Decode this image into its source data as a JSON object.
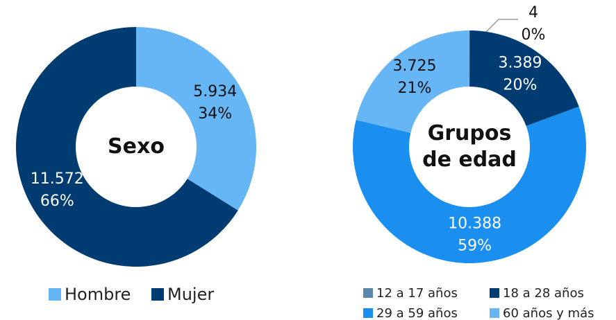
{
  "chart_data": [
    {
      "type": "donut",
      "title": "Sexo",
      "categories": [
        "Hombre",
        "Mujer"
      ],
      "values": [
        5934,
        11572
      ],
      "value_labels": [
        "5.934",
        "11.572"
      ],
      "percents": [
        34,
        66
      ],
      "percent_labels": [
        "34%",
        "66%"
      ],
      "colors": [
        "#66b5f5",
        "#003b71"
      ],
      "legend": "bottom"
    },
    {
      "type": "donut",
      "title": "Grupos de edad",
      "categories": [
        "12 a 17 años",
        "18 a 28 años",
        "29 a 59 años",
        "60 años y más"
      ],
      "values": [
        4,
        3389,
        10388,
        3725
      ],
      "value_labels": [
        "4",
        "3.389",
        "10.388",
        "3.725"
      ],
      "percents": [
        0,
        20,
        59,
        21
      ],
      "percent_labels": [
        "0%",
        "20%",
        "59%",
        "21%"
      ],
      "colors": [
        "#5b87ab",
        "#003b71",
        "#1a8ff0",
        "#66b5f5"
      ],
      "legend": "bottom"
    }
  ]
}
